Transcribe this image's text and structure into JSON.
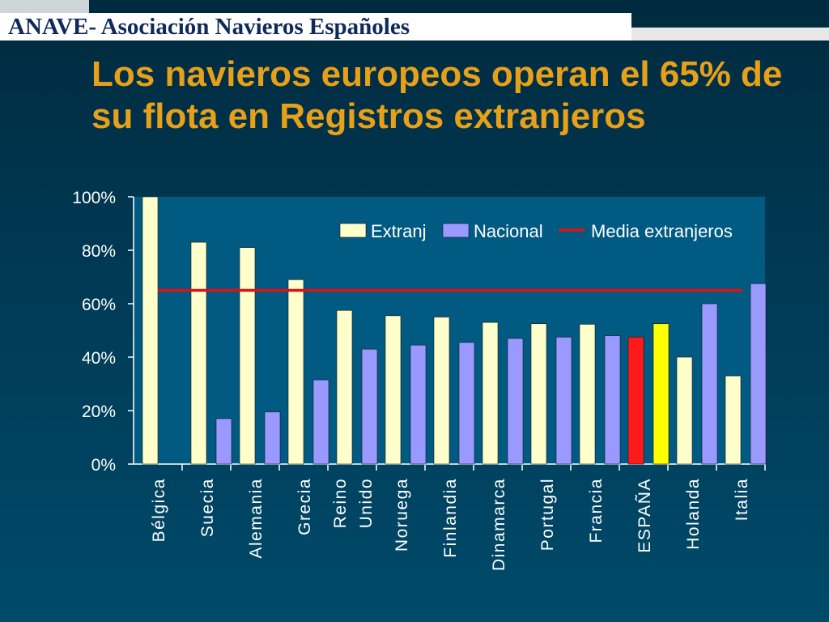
{
  "header": {
    "organization": "ANAVE- Asociación Navieros Españoles"
  },
  "slide": {
    "title": "Los navieros europeos operan el 65% de su flota en Registros extranjeros"
  },
  "colors": {
    "extranj": "#ffffcc",
    "nacional": "#9999ff",
    "media": "#dd1111",
    "espana_nacional": "#ff1a1a",
    "espana_extranj": "#ffff00",
    "title": "#e6a01a"
  },
  "chart_data": {
    "type": "bar",
    "title": "",
    "categories": [
      "Bélgica",
      "Suecia",
      "Alemania",
      "Grecia",
      [
        "Reino",
        "Unido"
      ],
      "Noruega",
      "Finlandia",
      "Dinamarca",
      "Portugal",
      "Francia",
      "ESPAÑA",
      "Holanda",
      "Italia"
    ],
    "series": [
      {
        "name": "Extranj",
        "values": [
          100,
          83,
          81,
          69,
          57.5,
          55.5,
          55,
          53,
          52.5,
          52.3,
          52.5,
          40,
          33
        ]
      },
      {
        "name": "Nacional",
        "values": [
          0,
          17,
          19.5,
          31.5,
          43,
          44.5,
          45.5,
          47,
          47.5,
          48,
          47.5,
          60,
          67.5
        ]
      }
    ],
    "reference_line": {
      "name": "Media extranjeros",
      "value": 65
    },
    "ylim": [
      0,
      100
    ],
    "yticks": [
      "0%",
      "20%",
      "40%",
      "60%",
      "80%",
      "100%"
    ],
    "xlabel": "",
    "ylabel": "",
    "legend": [
      "Extranj",
      "Nacional",
      "Media extranjeros"
    ],
    "legend_position": "top-right",
    "highlight_category": "ESPAÑA"
  }
}
